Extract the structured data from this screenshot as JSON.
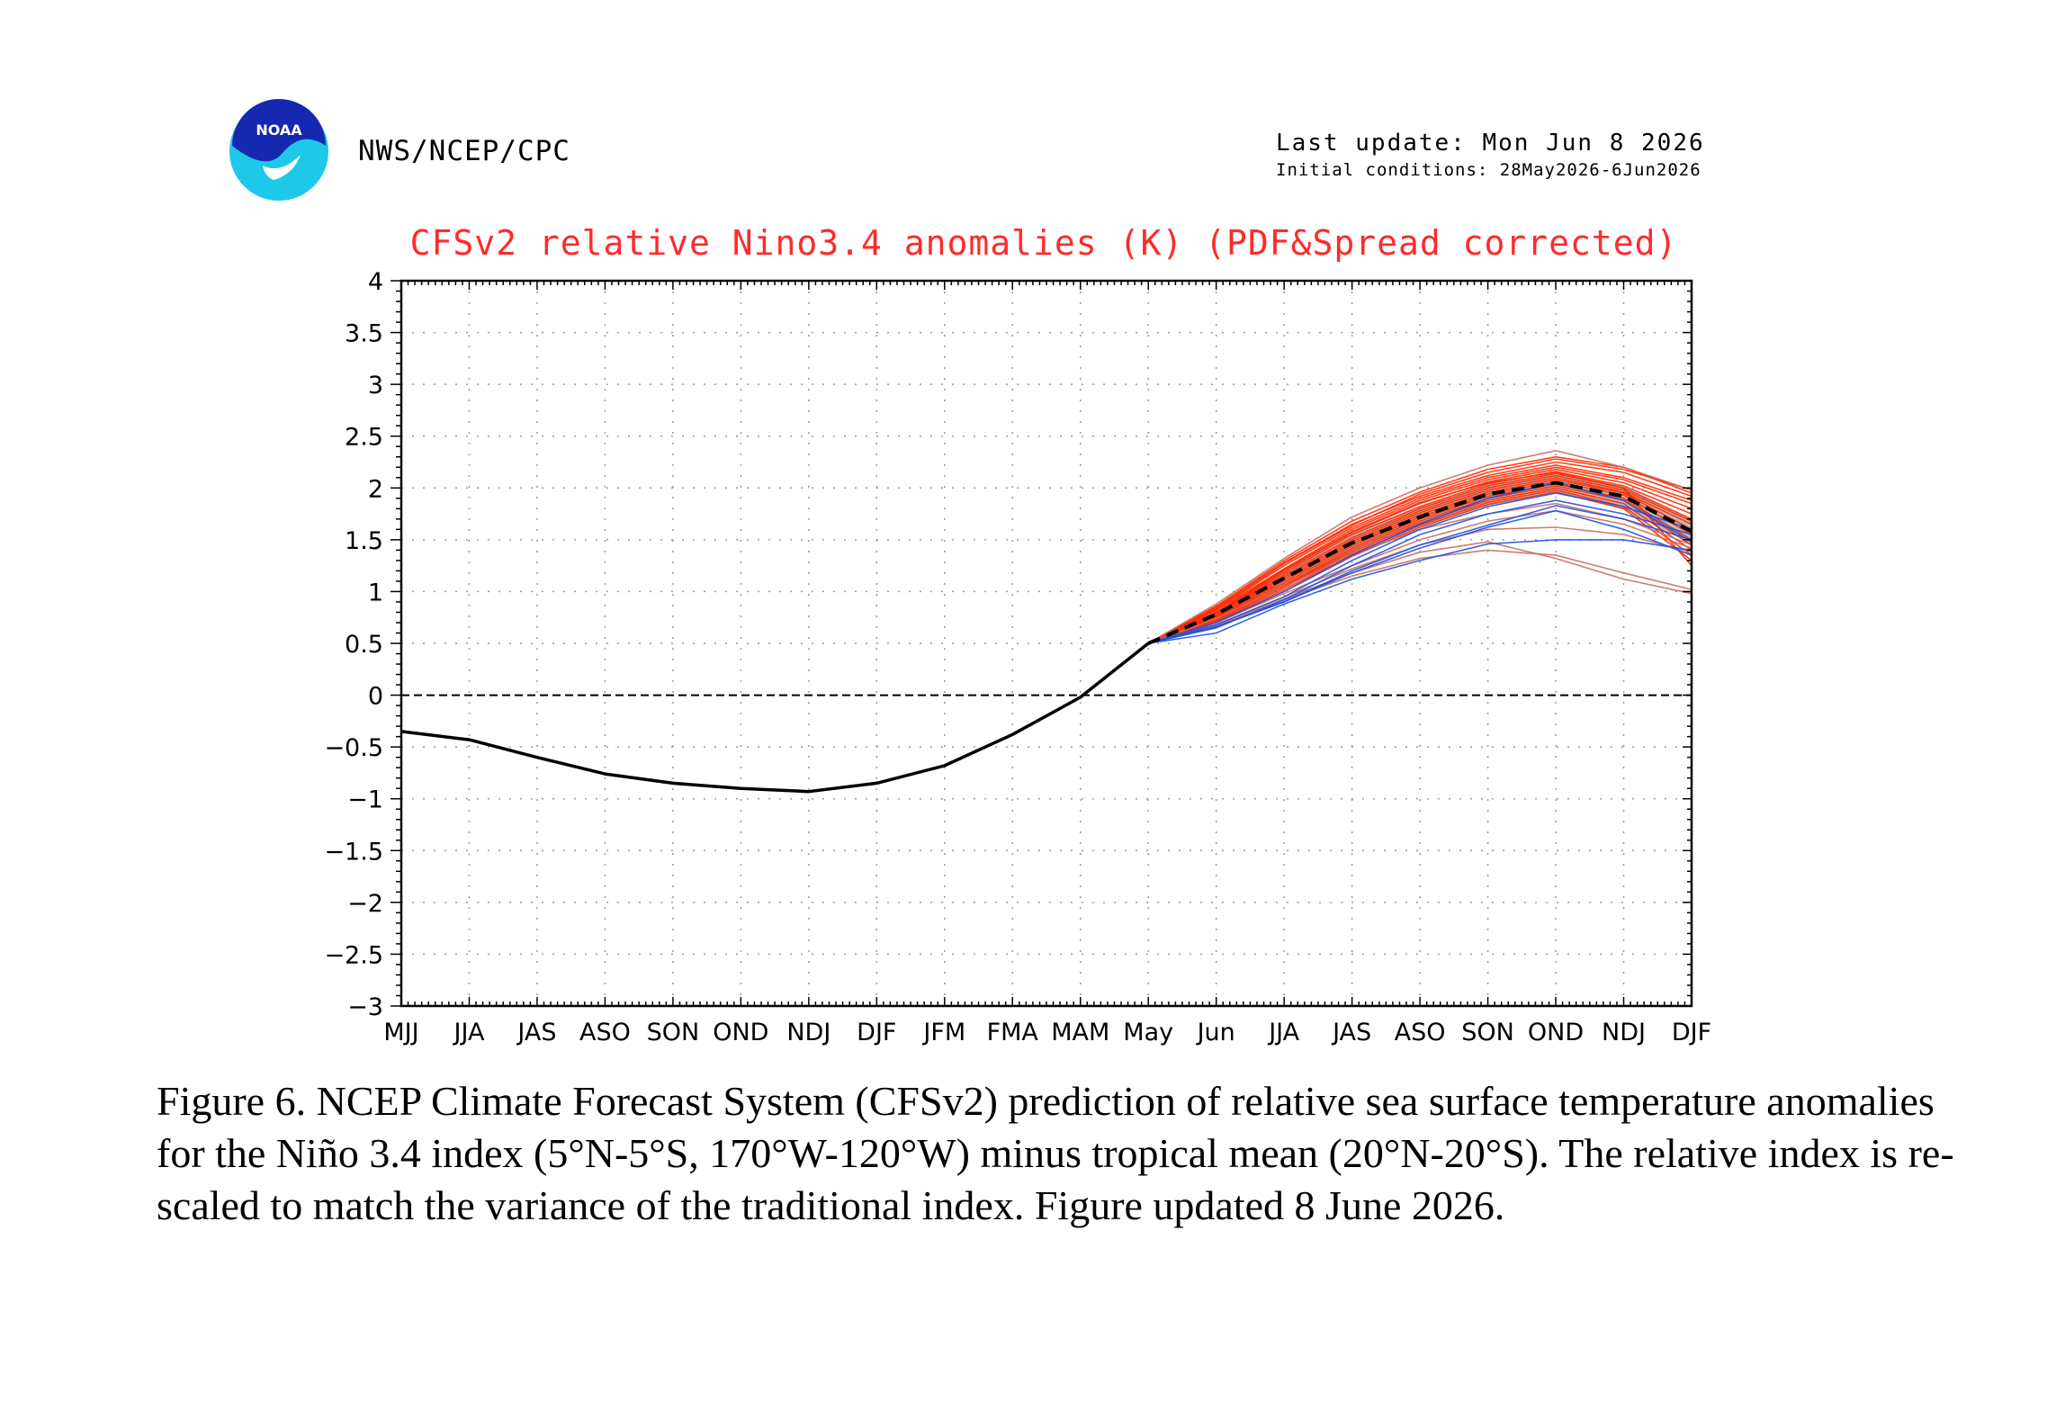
{
  "header": {
    "org": "NWS/NCEP/CPC",
    "logo_text": "NOAA",
    "last_update": "Last update: Mon Jun 8 2026",
    "initial_conditions": "Initial conditions: 28May2026-6Jun2026"
  },
  "chart_data": {
    "type": "line",
    "title": "CFSv2 relative Nino3.4 anomalies (K) (PDF&Spread corrected)",
    "title_color": "#ff2a2a",
    "xlabel": "",
    "ylabel": "",
    "categories": [
      "MJJ",
      "JJA",
      "JAS",
      "ASO",
      "SON",
      "OND",
      "NDJ",
      "DJF",
      "JFM",
      "FMA",
      "MAM",
      "May",
      "Jun",
      "JJA",
      "JAS",
      "ASO",
      "SON",
      "OND",
      "NDJ",
      "DJF"
    ],
    "ylim": [
      -3,
      4
    ],
    "yticks": [
      -3,
      -2.5,
      -2,
      -1.5,
      -1,
      -0.5,
      0,
      0.5,
      1,
      1.5,
      2,
      2.5,
      3,
      3.5,
      4
    ],
    "ytick_labels": [
      "−3",
      "−2.5",
      "−2",
      "−1.5",
      "−1",
      "−0.5",
      "0",
      "0.5",
      "1",
      "1.5",
      "2",
      "2.5",
      "3",
      "3.5",
      "4"
    ],
    "grid": true,
    "zero_line": true,
    "observed": {
      "color": "#000000",
      "values": [
        -0.35,
        -0.43,
        -0.6,
        -0.76,
        -0.85,
        -0.9,
        -0.93,
        -0.85,
        -0.68,
        -0.38,
        -0.02,
        0.5
      ]
    },
    "ensemble_mean": {
      "color": "#000000",
      "style": "dashed",
      "start_index": 11,
      "values": [
        0.5,
        0.78,
        1.13,
        1.47,
        1.72,
        1.94,
        2.05,
        1.92,
        1.58
      ]
    },
    "spread_band": {
      "color": "#a9a9a9",
      "start_index": 11,
      "lower": [
        0.5,
        0.72,
        1.04,
        1.36,
        1.62,
        1.83,
        1.96,
        1.8,
        1.45
      ],
      "upper": [
        0.5,
        0.84,
        1.22,
        1.57,
        1.82,
        2.04,
        2.14,
        2.02,
        1.7
      ]
    },
    "members": [
      {
        "color": "#ff2a00",
        "values": [
          0.5,
          0.85,
          1.28,
          1.65,
          1.92,
          2.12,
          2.25,
          2.15,
          1.92
        ]
      },
      {
        "color": "#ff2a00",
        "values": [
          0.5,
          0.83,
          1.25,
          1.62,
          1.9,
          2.1,
          2.22,
          2.1,
          1.88
        ]
      },
      {
        "color": "#ff2a00",
        "values": [
          0.5,
          0.82,
          1.22,
          1.6,
          1.88,
          2.08,
          2.2,
          2.08,
          1.85
        ]
      },
      {
        "color": "#ff2a00",
        "values": [
          0.5,
          0.8,
          1.2,
          1.57,
          1.85,
          2.06,
          2.18,
          2.05,
          1.8
        ]
      },
      {
        "color": "#ff2a00",
        "values": [
          0.5,
          0.8,
          1.18,
          1.55,
          1.82,
          2.04,
          2.16,
          2.02,
          1.75
        ]
      },
      {
        "color": "#ff2a00",
        "values": [
          0.5,
          0.79,
          1.16,
          1.52,
          1.8,
          2.02,
          2.14,
          2.0,
          1.7
        ]
      },
      {
        "color": "#ff2a00",
        "values": [
          0.5,
          0.78,
          1.14,
          1.5,
          1.78,
          2.0,
          2.12,
          1.98,
          1.68
        ]
      },
      {
        "color": "#ff2a00",
        "values": [
          0.5,
          0.77,
          1.12,
          1.48,
          1.76,
          1.98,
          2.1,
          1.96,
          1.65
        ]
      },
      {
        "color": "#ff2a00",
        "values": [
          0.5,
          0.76,
          1.1,
          1.46,
          1.74,
          1.96,
          2.08,
          1.95,
          1.6
        ]
      },
      {
        "color": "#ff2a00",
        "values": [
          0.5,
          0.75,
          1.08,
          1.44,
          1.72,
          1.94,
          2.06,
          1.93,
          1.55
        ]
      },
      {
        "color": "#ff2a00",
        "values": [
          0.5,
          0.74,
          1.06,
          1.42,
          1.7,
          1.92,
          2.04,
          1.9,
          1.5
        ]
      },
      {
        "color": "#ff2a00",
        "values": [
          0.5,
          0.73,
          1.05,
          1.4,
          1.68,
          1.9,
          2.02,
          1.88,
          1.45
        ]
      },
      {
        "color": "#ff2a00",
        "values": [
          0.5,
          0.72,
          1.04,
          1.38,
          1.66,
          1.88,
          2.0,
          1.85,
          1.4
        ]
      },
      {
        "color": "#ff2a00",
        "values": [
          0.5,
          0.71,
          1.02,
          1.36,
          1.64,
          1.86,
          1.98,
          1.82,
          1.35
        ]
      },
      {
        "color": "#ff2a00",
        "values": [
          0.5,
          0.7,
          1.0,
          1.34,
          1.62,
          1.84,
          1.96,
          1.8,
          1.3
        ]
      },
      {
        "color": "#ff2a00",
        "values": [
          0.5,
          0.86,
          1.3,
          1.68,
          1.96,
          2.18,
          2.3,
          2.2,
          1.95
        ]
      },
      {
        "color": "#ff2a00",
        "values": [
          0.5,
          0.84,
          1.27,
          1.64,
          1.94,
          2.15,
          2.28,
          2.18,
          1.98
        ]
      },
      {
        "color": "#ff2a00",
        "values": [
          0.5,
          0.8,
          1.21,
          1.58,
          1.86,
          2.05,
          2.15,
          2.0,
          1.25
        ]
      },
      {
        "color": "#c87060",
        "values": [
          0.5,
          0.88,
          1.32,
          1.72,
          2.0,
          2.22,
          2.36,
          2.2,
          1.98
        ]
      },
      {
        "color": "#c87060",
        "values": [
          0.5,
          0.74,
          1.05,
          1.35,
          1.6,
          1.75,
          1.85,
          1.7,
          1.45
        ]
      },
      {
        "color": "#c87060",
        "values": [
          0.5,
          0.68,
          0.95,
          1.22,
          1.45,
          1.6,
          1.62,
          1.55,
          1.38
        ]
      },
      {
        "color": "#c87060",
        "values": [
          0.5,
          0.66,
          0.92,
          1.15,
          1.32,
          1.4,
          1.35,
          1.18,
          1.02
        ]
      },
      {
        "color": "#c87060",
        "values": [
          0.5,
          0.67,
          0.93,
          1.18,
          1.38,
          1.48,
          1.32,
          1.12,
          0.98
        ]
      },
      {
        "color": "#c87060",
        "values": [
          0.5,
          0.7,
          0.98,
          1.25,
          1.5,
          1.68,
          1.78,
          1.65,
          1.42
        ]
      },
      {
        "color": "#2050e0",
        "values": [
          0.5,
          0.6,
          0.88,
          1.12,
          1.3,
          1.46,
          1.5,
          1.5,
          1.4
        ]
      },
      {
        "color": "#2050e0",
        "values": [
          0.5,
          0.66,
          0.9,
          1.2,
          1.45,
          1.64,
          1.83,
          1.7,
          1.5
        ]
      },
      {
        "color": "#2050e0",
        "values": [
          0.5,
          0.65,
          0.92,
          1.25,
          1.55,
          1.75,
          1.88,
          1.75,
          1.55
        ]
      },
      {
        "color": "#2050e0",
        "values": [
          0.5,
          0.68,
          0.95,
          1.3,
          1.6,
          1.82,
          1.95,
          1.82,
          1.6
        ]
      },
      {
        "color": "#2050e0",
        "values": [
          0.5,
          0.7,
          1.0,
          1.35,
          1.65,
          1.9,
          2.05,
          1.88,
          1.48
        ]
      },
      {
        "color": "#2050e0",
        "values": [
          0.5,
          0.66,
          0.9,
          1.18,
          1.42,
          1.62,
          1.78,
          1.6,
          1.35
        ]
      }
    ]
  },
  "caption": "Figure 6. NCEP Climate Forecast System (CFSv2) prediction of relative sea surface temperature anomalies for the Niño 3.4 index (5°N-5°S, 170°W-120°W) minus tropical mean (20°N-20°S). The relative index is re-scaled to match the variance of the traditional index. Figure updated 8 June 2026."
}
